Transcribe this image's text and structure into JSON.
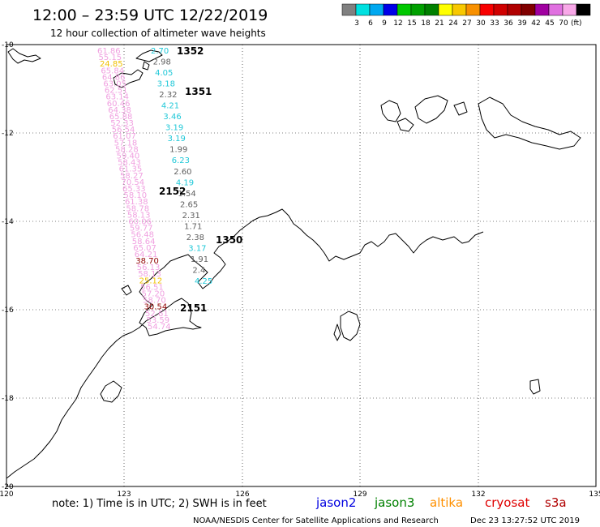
{
  "header": {
    "title": "12:00 – 23:59 UTC 12/22/2019",
    "subtitle": "12 hour collection of altimeter wave heights",
    "legend_unit": "(ft)"
  },
  "legend": {
    "colors": [
      "#808080",
      "#00e0e0",
      "#00a8f0",
      "#0000e8",
      "#00c800",
      "#00a000",
      "#008000",
      "#ffff00",
      "#f8c800",
      "#f89000",
      "#f80000",
      "#d00000",
      "#b00000",
      "#800000",
      "#a000a0",
      "#e070e0",
      "#f8a8e8",
      "#000000"
    ],
    "labels": [
      "3",
      "6",
      "9",
      "12",
      "15",
      "18",
      "21",
      "24",
      "27",
      "30",
      "33",
      "36",
      "39",
      "42",
      "45",
      "70"
    ]
  },
  "axes": {
    "x_ticks": [
      "120",
      "123",
      "126",
      "129",
      "132",
      "135"
    ],
    "y_ticks": [
      "-10",
      "-12",
      "-14",
      "-16",
      "-18",
      "-20"
    ]
  },
  "satellites": [
    {
      "name": "jason2",
      "color": "#0000e0"
    },
    {
      "name": "jason3",
      "color": "#008000"
    },
    {
      "name": "altika",
      "color": "#ff9000"
    },
    {
      "name": "cryosat",
      "color": "#e00000"
    },
    {
      "name": "s3a",
      "color": "#b00000"
    }
  ],
  "footer": {
    "note": "note:  1) Time is in UTC;  2) SWH is in feet",
    "credit": "NOAA/NESDIS Center for Satellite Applications and Research",
    "timestamp": "Dec 23 13:27:52 UTC 2019"
  },
  "pass_labels": [
    {
      "text": "1352",
      "color": "#900000"
    },
    {
      "text": "1351",
      "color": "#900000"
    },
    {
      "text": "2152",
      "color": "#f09000"
    },
    {
      "text": "1350",
      "color": "#900000"
    },
    {
      "text": "2151",
      "color": "#f09000"
    }
  ],
  "track_right": [
    {
      "v": "2.70",
      "c": "#20c8d8"
    },
    {
      "v": "2.98",
      "c": "#606060"
    },
    {
      "v": "4.05",
      "c": "#20c8d8"
    },
    {
      "v": "3.18",
      "c": "#20c8d8"
    },
    {
      "v": "2.32",
      "c": "#606060"
    },
    {
      "v": "4.21",
      "c": "#20c8d8"
    },
    {
      "v": "3.46",
      "c": "#20c8d8"
    },
    {
      "v": "3.19",
      "c": "#20c8d8"
    },
    {
      "v": "3.19",
      "c": "#20c8d8"
    },
    {
      "v": "1.99",
      "c": "#606060"
    },
    {
      "v": "6.23",
      "c": "#20c8d8"
    },
    {
      "v": "2.60",
      "c": "#606060"
    },
    {
      "v": "4.19",
      "c": "#20c8d8"
    },
    {
      "v": "1.54",
      "c": "#606060"
    },
    {
      "v": "2.65",
      "c": "#606060"
    },
    {
      "v": "2.31",
      "c": "#606060"
    },
    {
      "v": "1.71",
      "c": "#606060"
    },
    {
      "v": "2.38",
      "c": "#606060"
    },
    {
      "v": "3.17",
      "c": "#20c8d8"
    },
    {
      "v": "1.91",
      "c": "#606060"
    },
    {
      "v": "2.4",
      "c": "#606060"
    },
    {
      "v": "4.25",
      "c": "#20c8d8"
    }
  ],
  "track_left": [
    {
      "v": "61.86",
      "c": "#f0a0e0"
    },
    {
      "v": "55.15",
      "c": "#f0a0e0"
    },
    {
      "v": "24.85",
      "c": "#f0c000"
    },
    {
      "v": "65.84",
      "c": "#f0a0e0"
    },
    {
      "v": "64.86",
      "c": "#f0a0e0"
    },
    {
      "v": "63.05",
      "c": "#f0a0e0"
    },
    {
      "v": "62.51",
      "c": "#f0a0e0"
    },
    {
      "v": "63.14",
      "c": "#f0a0e0"
    },
    {
      "v": "60.46",
      "c": "#f0a0e0"
    },
    {
      "v": "64.38",
      "c": "#f0a0e0"
    },
    {
      "v": "65.88",
      "c": "#f0a0e0"
    },
    {
      "v": "52.33",
      "c": "#f0a0e0"
    },
    {
      "v": "56.54",
      "c": "#f0a0e0"
    },
    {
      "v": "61.07",
      "c": "#f0a0e0"
    },
    {
      "v": "57.18",
      "c": "#f0a0e0"
    },
    {
      "v": "58.28",
      "c": "#f0a0e0"
    },
    {
      "v": "59.40",
      "c": "#f0a0e0"
    },
    {
      "v": "58.43",
      "c": "#f0a0e0"
    },
    {
      "v": "61.35",
      "c": "#f0a0e0"
    },
    {
      "v": "58.27",
      "c": "#f0a0e0"
    },
    {
      "v": "70.54",
      "c": "#f0a0e0"
    },
    {
      "v": "65.33",
      "c": "#f0a0e0"
    },
    {
      "v": "58.10",
      "c": "#f0a0e0"
    },
    {
      "v": "61.38",
      "c": "#f0a0e0"
    },
    {
      "v": "58.78",
      "c": "#f0a0e0"
    },
    {
      "v": "58.13",
      "c": "#f0a0e0"
    },
    {
      "v": "60.06",
      "c": "#f0a0e0"
    },
    {
      "v": "59.77",
      "c": "#f0a0e0"
    },
    {
      "v": "56.48",
      "c": "#f0a0e0"
    },
    {
      "v": "58.64",
      "c": "#f0a0e0"
    },
    {
      "v": "65.07",
      "c": "#f0a0e0"
    },
    {
      "v": "64.21",
      "c": "#f0a0e0"
    },
    {
      "v": "38.70",
      "c": "#900000"
    },
    {
      "v": "56.13",
      "c": "#f0a0e0"
    },
    {
      "v": "58.13",
      "c": "#f0a0e0"
    },
    {
      "v": "25.12",
      "c": "#f0c000"
    },
    {
      "v": "56.51",
      "c": "#f0a0e0"
    },
    {
      "v": "57.20",
      "c": "#f0a0e0"
    },
    {
      "v": "58.70",
      "c": "#f0a0e0"
    },
    {
      "v": "30.54",
      "c": "#900000"
    },
    {
      "v": "52.61",
      "c": "#f0a0e0"
    },
    {
      "v": "53.59",
      "c": "#f0a0e0"
    },
    {
      "v": "54.74",
      "c": "#f0a0e0"
    }
  ]
}
